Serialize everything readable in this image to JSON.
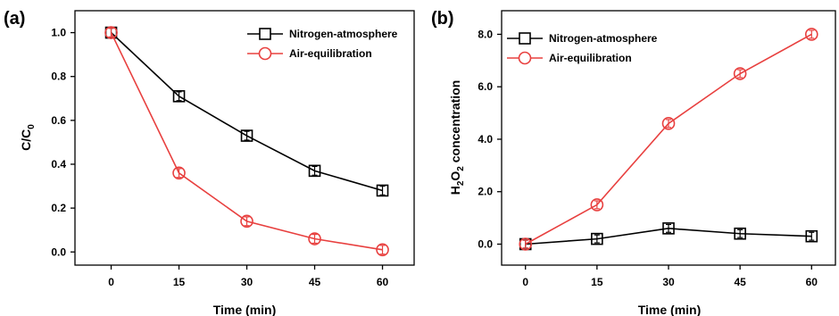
{
  "chart_data": [
    {
      "type": "line",
      "panel_label": "(a)",
      "x": [
        0,
        15,
        30,
        45,
        60
      ],
      "xticks": [
        "0",
        "15",
        "30",
        "45",
        "60"
      ],
      "yticks": [
        "0.0",
        "0.2",
        "0.4",
        "0.6",
        "0.8",
        "1.0"
      ],
      "xlim": [
        -8,
        67
      ],
      "ylim": [
        -0.06,
        1.1
      ],
      "xlabel": "Time (min)",
      "ylabel_main": "C/C",
      "ylabel_sub": "0",
      "legend_position": "top-right",
      "series": [
        {
          "name": "Nitrogen-atmosphere",
          "marker": "square",
          "color": "#000000",
          "values": [
            1.0,
            0.71,
            0.53,
            0.37,
            0.28
          ],
          "errors": [
            0.02,
            0.02,
            0.02,
            0.02,
            0.02
          ]
        },
        {
          "name": "Air-equilibration",
          "marker": "circle",
          "color": "#e8403f",
          "values": [
            1.0,
            0.36,
            0.14,
            0.06,
            0.01
          ],
          "errors": [
            0.02,
            0.02,
            0.02,
            0.02,
            0.02
          ]
        }
      ]
    },
    {
      "type": "line",
      "panel_label": "(b)",
      "x": [
        0,
        15,
        30,
        45,
        60
      ],
      "xticks": [
        "0",
        "15",
        "30",
        "45",
        "60"
      ],
      "yticks": [
        "0.0",
        "2.0",
        "4.0",
        "6.0",
        "8.0"
      ],
      "xlim": [
        -5,
        65
      ],
      "ylim": [
        -0.8,
        8.9
      ],
      "xlabel": "Time (min)",
      "ylabel_parts": [
        "H",
        "2",
        "O",
        "2",
        " concentration"
      ],
      "legend_position": "top-left",
      "series": [
        {
          "name": "Nitrogen-atmosphere",
          "marker": "square",
          "color": "#000000",
          "values": [
            0.0,
            0.2,
            0.6,
            0.4,
            0.3
          ],
          "errors": [
            0.15,
            0.15,
            0.15,
            0.15,
            0.15
          ]
        },
        {
          "name": "Air-equilibration",
          "marker": "circle",
          "color": "#e8403f",
          "values": [
            0.0,
            1.5,
            4.6,
            6.5,
            8.0
          ],
          "errors": [
            0.15,
            0.15,
            0.15,
            0.15,
            0.15
          ]
        }
      ]
    }
  ]
}
